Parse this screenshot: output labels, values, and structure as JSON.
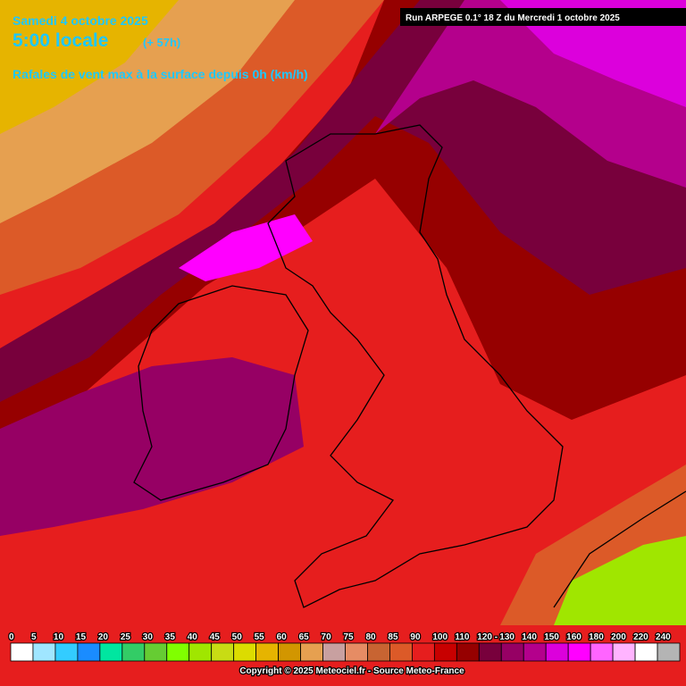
{
  "header": {
    "date": "Samedi 4 octobre 2025",
    "time": "5:00 locale",
    "lead": "(+ 57h)",
    "field": "Rafales de vent max à la surface depuis 0h (km/h)",
    "run": "Run ARPEGE 0.1° 18 Z du Mercredi 1 octobre 2025"
  },
  "legend": {
    "labels": [
      "0",
      "5",
      "10",
      "15",
      "20",
      "25",
      "30",
      "35",
      "40",
      "45",
      "50",
      "55",
      "60",
      "65",
      "70",
      "75",
      "80",
      "85",
      "90",
      "100",
      "110",
      "120 -",
      "130",
      "140",
      "150",
      "160",
      "180",
      "200",
      "220",
      "240"
    ],
    "colors": [
      "#ffffff",
      "#a0e6ff",
      "#33ccff",
      "#1a8cff",
      "#00e6a0",
      "#33cc66",
      "#66cc33",
      "#80ff00",
      "#a0e600",
      "#c8dc14",
      "#dcdc00",
      "#e6b400",
      "#d29600",
      "#e6a050",
      "#c8a0a0",
      "#e68c64",
      "#c86432",
      "#dc5a28",
      "#e61e1e",
      "#c80000",
      "#960000",
      "#78003c",
      "#960064",
      "#b4008c",
      "#dc00dc",
      "#ff00ff",
      "#ff64ff",
      "#ffb4ff",
      "#ffffff",
      "#b4b4b4"
    ]
  },
  "footer": {
    "copyright": "Copyright © 2025 Meteociel.fr - Source Meteo-France"
  }
}
